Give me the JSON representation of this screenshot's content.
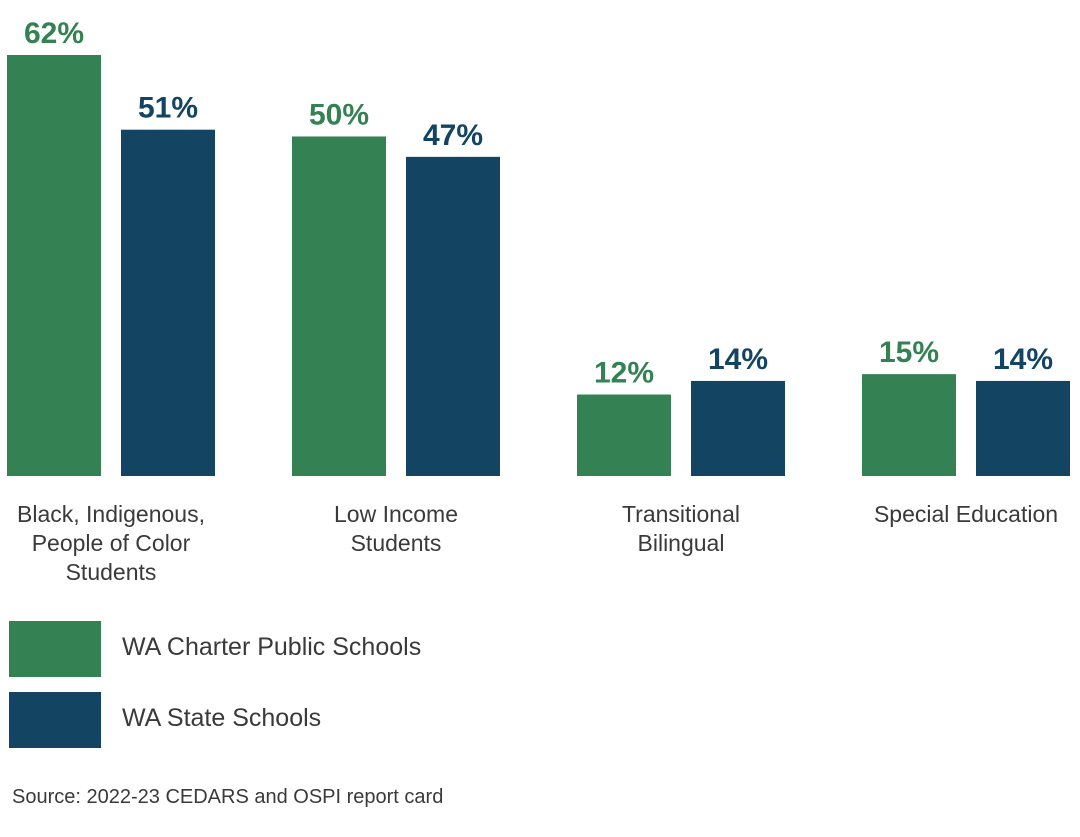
{
  "chart_data": {
    "type": "bar",
    "categories": [
      [
        "Black, Indigenous,",
        "People of Color",
        "Students"
      ],
      [
        "Low Income",
        "Students"
      ],
      [
        "Transitional",
        "Bilingual"
      ],
      [
        "Special Education"
      ]
    ],
    "series": [
      {
        "name": "WA Charter Public Schools",
        "color": "#348253",
        "values": [
          62,
          50,
          12,
          15
        ],
        "labels": [
          "62%",
          "50%",
          "12%",
          "15%"
        ]
      },
      {
        "name": "WA State Schools",
        "color": "#134462",
        "values": [
          51,
          47,
          14,
          14
        ],
        "labels": [
          "51%",
          "47%",
          "14%",
          "14%"
        ]
      }
    ],
    "ylim": [
      0,
      62
    ],
    "grid": false,
    "legend_position": "bottom-left"
  },
  "source": "Source: 2022-23 CEDARS and OSPI report card"
}
